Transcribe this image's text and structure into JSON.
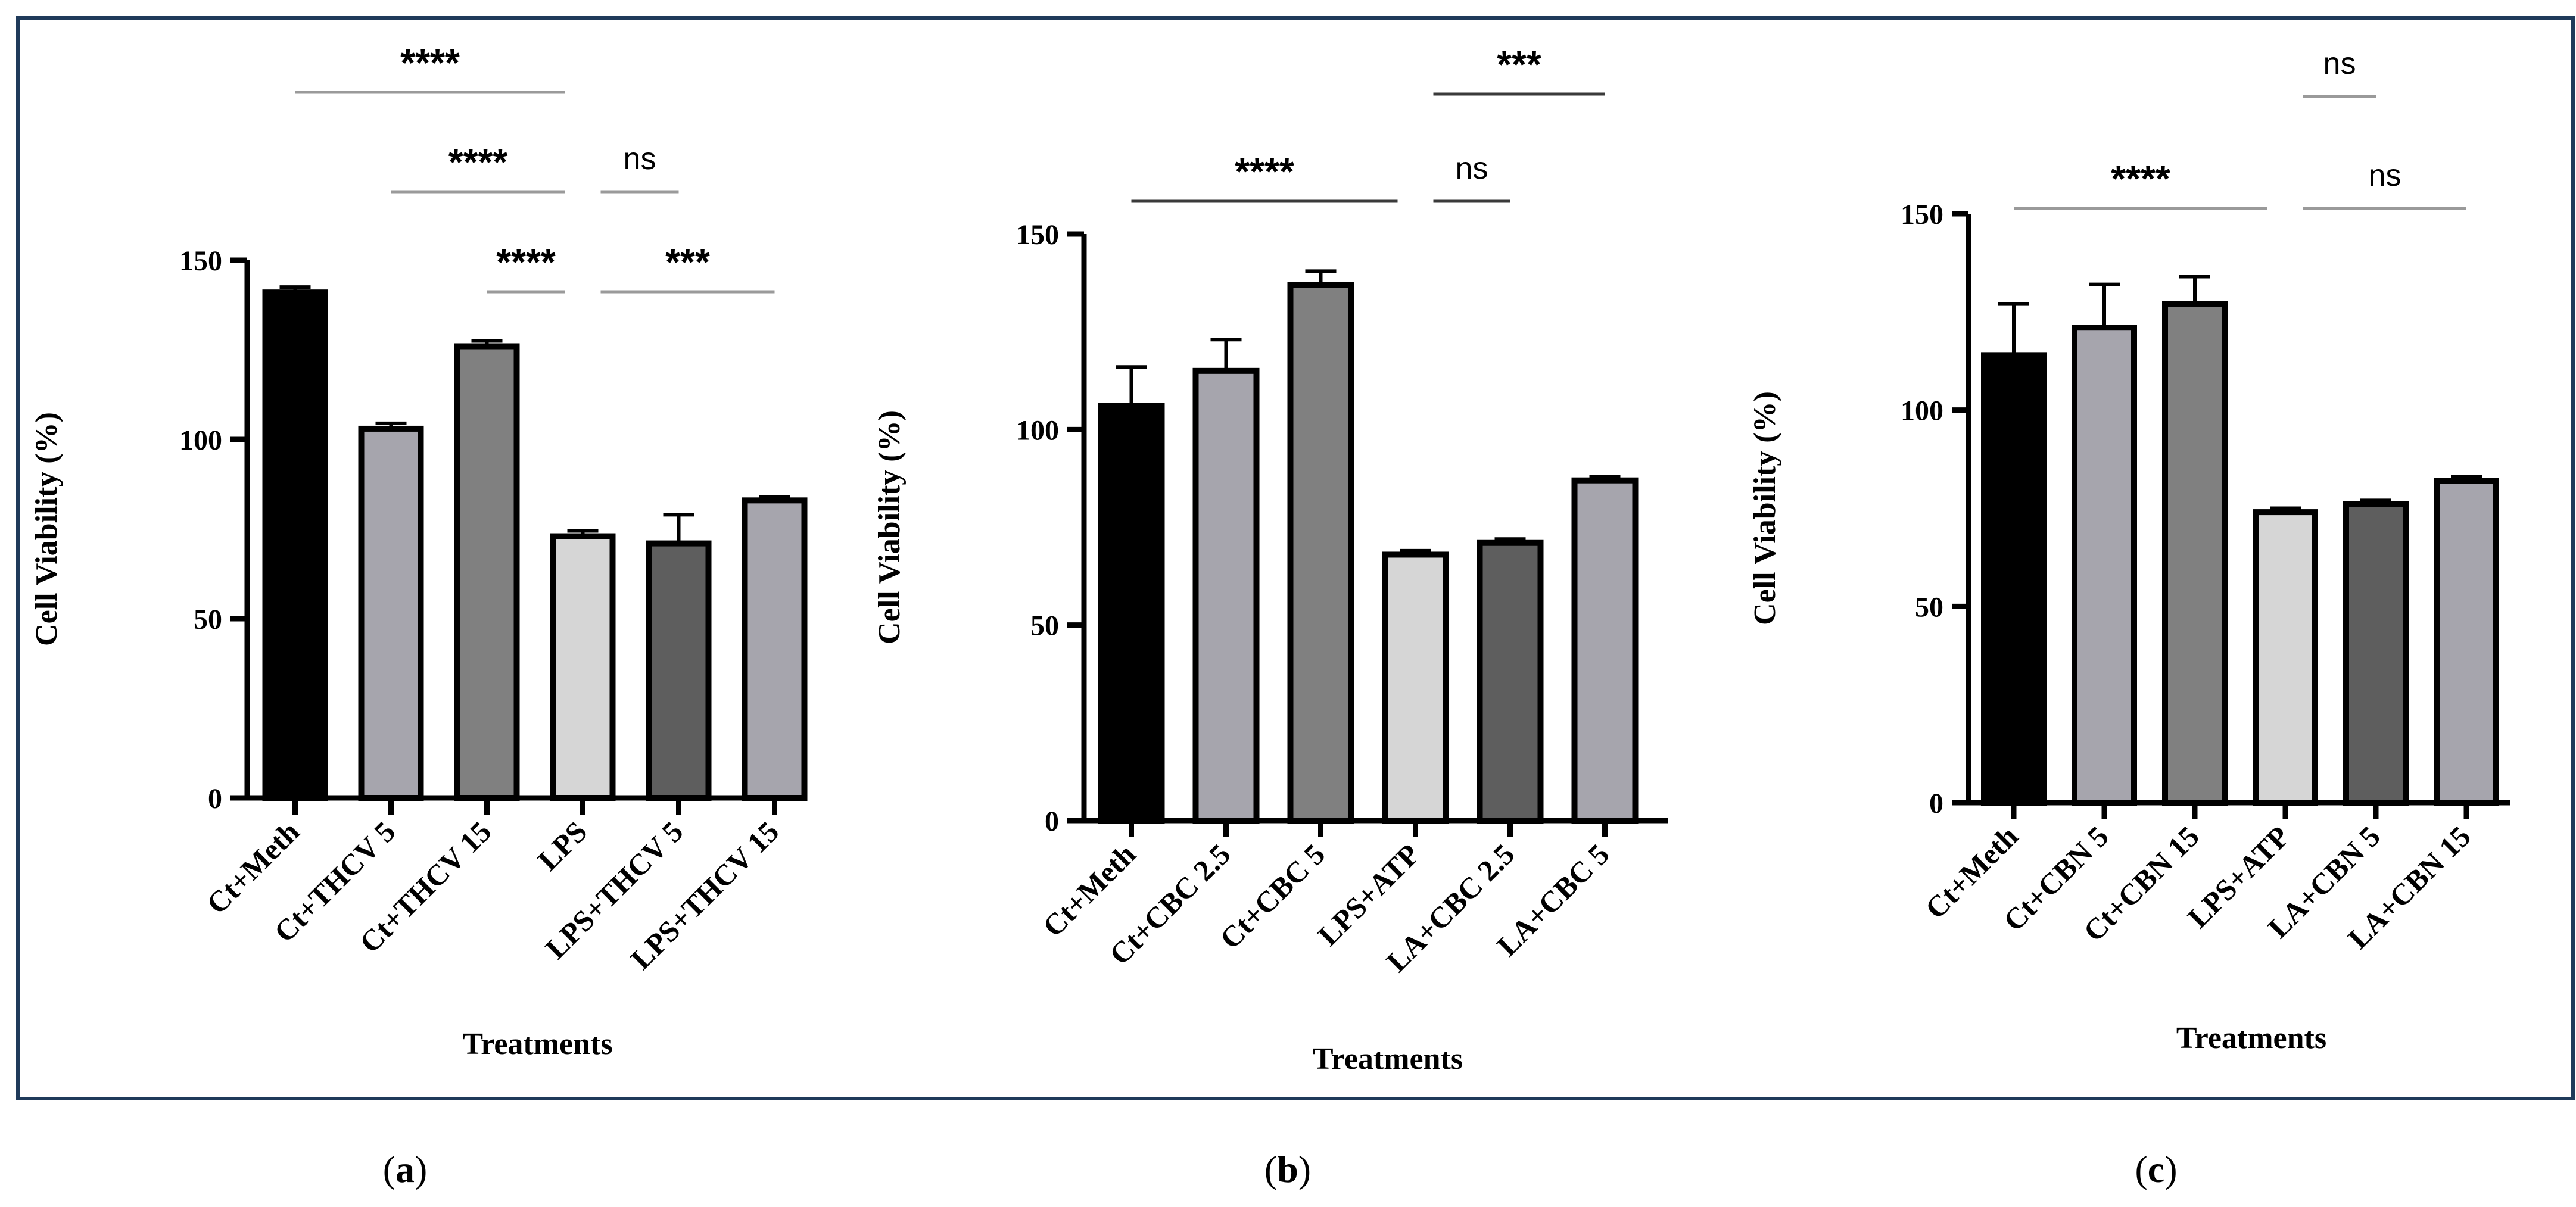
{
  "figure": {
    "panel_labels": [
      {
        "open": "(",
        "letter": "a",
        "close": ")"
      },
      {
        "open": "(",
        "letter": "b",
        "close": ")"
      },
      {
        "open": "(",
        "letter": "c",
        "close": ")"
      }
    ]
  },
  "chart_data": [
    {
      "type": "bar",
      "ylabel": "Cell Viability (%)",
      "xlabel": "Treatments",
      "ylim": [
        0,
        150
      ],
      "yticks": [
        0,
        50,
        100,
        150
      ],
      "categories": [
        "Ct+Meth",
        "Ct+THCV 5",
        "Ct+THCV 15",
        "LPS",
        "LPS+THCV 5",
        "LPS+THCV 15"
      ],
      "values": [
        141,
        103,
        126,
        73,
        71,
        83
      ],
      "errors": [
        1.5,
        1.5,
        1.5,
        1.5,
        8,
        1
      ],
      "colors": [
        "#000000",
        "#a6a5ad",
        "#808080",
        "#d6d6d6",
        "#5e5e5e",
        "#a6a5ad"
      ],
      "significance": [
        {
          "from": 0,
          "to": 3,
          "level": 0,
          "label": "****",
          "style": "light"
        },
        {
          "from": 1,
          "to": 3,
          "level": 1,
          "label": "****",
          "style": "light"
        },
        {
          "from": 3,
          "to": 4,
          "level": 1,
          "label": "ns",
          "style": "light"
        },
        {
          "from": 2,
          "to": 3,
          "level": 2,
          "label": "****",
          "style": "light"
        },
        {
          "from": 3,
          "to": 5,
          "level": 2,
          "label": "***",
          "style": "light"
        }
      ]
    },
    {
      "type": "bar",
      "ylabel": "Cell Viability (%)",
      "xlabel": "Treatments",
      "ylim": [
        0,
        150
      ],
      "yticks": [
        0,
        50,
        100,
        150
      ],
      "categories": [
        "Ct+Meth",
        "Ct+CBC 2.5",
        "Ct+CBC 5",
        "LPS+ATP",
        "LA+CBC 2.5",
        "LA+CBC 5"
      ],
      "values": [
        106,
        115,
        137,
        68,
        71,
        87
      ],
      "errors": [
        10,
        8,
        3.5,
        1,
        1,
        1
      ],
      "colors": [
        "#000000",
        "#a6a5ad",
        "#808080",
        "#d6d6d6",
        "#5e5e5e",
        "#a6a5ad"
      ],
      "significance": [
        {
          "from": 3,
          "to": 5,
          "level": 0,
          "label": "***",
          "style": "dark"
        },
        {
          "from": 0,
          "to": 3,
          "level": 1,
          "label": "****",
          "style": "dark"
        },
        {
          "from": 3,
          "to": 4,
          "level": 1,
          "label": "ns",
          "style": "dark"
        }
      ]
    },
    {
      "type": "bar",
      "ylabel": "Cell Viability (%)",
      "xlabel": "Treatments",
      "ylim": [
        0,
        150
      ],
      "yticks": [
        0,
        50,
        100,
        150
      ],
      "categories": [
        "Ct+Meth",
        "Ct+CBN 5",
        "Ct+CBN 15",
        "LPS+ATP",
        "LA+CBN 5",
        "LA+CBN 15"
      ],
      "values": [
        114,
        121,
        127,
        74,
        76,
        82
      ],
      "errors": [
        13,
        11,
        7,
        1,
        1,
        1
      ],
      "colors": [
        "#000000",
        "#a6a5ad",
        "#808080",
        "#d6d6d6",
        "#5e5e5e",
        "#a6a5ad"
      ],
      "significance": [
        {
          "from": 3,
          "to": 4,
          "level": 0,
          "label": "ns",
          "style": "light"
        },
        {
          "from": 0,
          "to": 3,
          "level": 1,
          "label": "****",
          "style": "light"
        },
        {
          "from": 3,
          "to": 5,
          "level": 1,
          "label": "ns",
          "style": "light"
        }
      ]
    }
  ]
}
